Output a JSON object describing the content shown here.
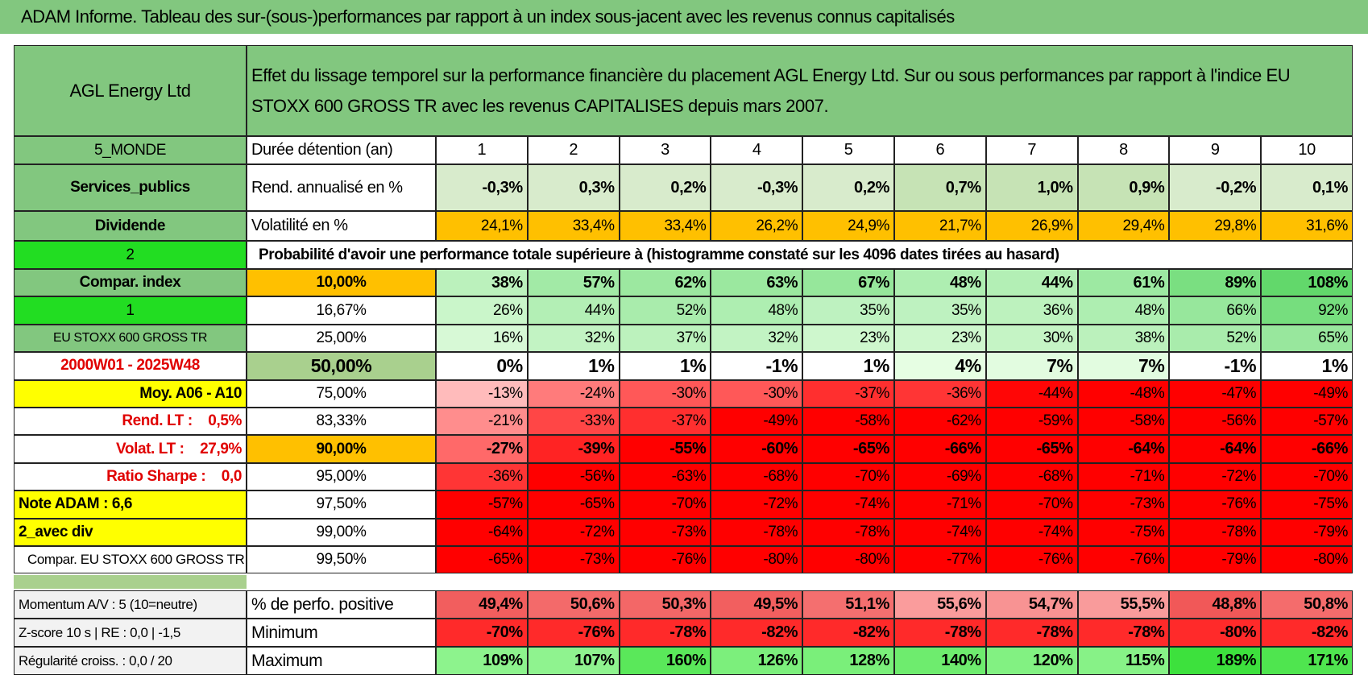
{
  "header": {
    "title": "ADAM Informe. Tableau des sur-(sous-)performances par rapport à un index sous-jacent avec les revenus connus capitalisés"
  },
  "table": {
    "corner": "AGL Energy Ltd",
    "description": "Effet du lissage temporel sur la performance financière du placement AGL Energy Ltd. Sur ou sous performances par rapport à l'indice EU STOXX 600 GROSS TR avec les revenus CAPITALISES depuis mars 2007.",
    "rows": [
      {
        "left": "5_MONDE",
        "label": "Durée détention (an)",
        "cells": [
          "1",
          "2",
          "3",
          "4",
          "5",
          "6",
          "7",
          "8",
          "9",
          "10"
        ]
      },
      {
        "left": "Services_publics",
        "label": "Rend. annualisé en %",
        "cells": [
          "-0,3%",
          "0,3%",
          "0,2%",
          "-0,3%",
          "0,2%",
          "0,7%",
          "1,0%",
          "0,9%",
          "-0,2%",
          "0,1%"
        ]
      },
      {
        "left": "Dividende",
        "label": "Volatilité en %",
        "cells": [
          "24,1%",
          "33,4%",
          "33,4%",
          "26,2%",
          "24,9%",
          "21,7%",
          "26,9%",
          "29,4%",
          "29,8%",
          "31,6%"
        ]
      },
      {
        "left": "2",
        "label": "Probabilité d'avoir une performance totale supérieure à (histogramme constaté sur les 4096 dates tirées au hasard)",
        "cells": []
      },
      {
        "left": "Compar. index",
        "label": "10,00%",
        "cells": [
          "38%",
          "57%",
          "62%",
          "63%",
          "67%",
          "48%",
          "44%",
          "61%",
          "89%",
          "108%"
        ]
      },
      {
        "left": "1",
        "label": "16,67%",
        "cells": [
          "26%",
          "44%",
          "52%",
          "48%",
          "35%",
          "35%",
          "36%",
          "48%",
          "66%",
          "92%"
        ]
      },
      {
        "left": "EU STOXX 600 GROSS TR",
        "label": "25,00%",
        "cells": [
          "16%",
          "32%",
          "37%",
          "32%",
          "23%",
          "23%",
          "30%",
          "38%",
          "52%",
          "65%"
        ]
      },
      {
        "left": "2000W01 - 2025W48",
        "label": "50,00%",
        "cells": [
          "0%",
          "1%",
          "1%",
          "-1%",
          "1%",
          "4%",
          "7%",
          "7%",
          "-1%",
          "1%"
        ]
      },
      {
        "left": "Moy. A06 - A10",
        "label": "75,00%",
        "cells": [
          "-13%",
          "-24%",
          "-30%",
          "-30%",
          "-37%",
          "-36%",
          "-44%",
          "-48%",
          "-47%",
          "-49%"
        ]
      },
      {
        "left": "Rend. LT :    0,5%",
        "label": "83,33%",
        "cells": [
          "-21%",
          "-33%",
          "-37%",
          "-49%",
          "-58%",
          "-62%",
          "-59%",
          "-58%",
          "-56%",
          "-57%"
        ]
      },
      {
        "left": "Volat. LT :    27,9%",
        "label": "90,00%",
        "cells": [
          "-27%",
          "-39%",
          "-55%",
          "-60%",
          "-65%",
          "-66%",
          "-65%",
          "-64%",
          "-64%",
          "-66%"
        ]
      },
      {
        "left": "Ratio Sharpe :    0,0",
        "label": "95,00%",
        "cells": [
          "-36%",
          "-56%",
          "-63%",
          "-68%",
          "-70%",
          "-69%",
          "-68%",
          "-71%",
          "-72%",
          "-70%"
        ]
      },
      {
        "left": "Note ADAM : 6,6",
        "label": "97,50%",
        "cells": [
          "-57%",
          "-65%",
          "-70%",
          "-72%",
          "-74%",
          "-71%",
          "-70%",
          "-73%",
          "-76%",
          "-75%"
        ]
      },
      {
        "left": "2_avec div",
        "label": "99,00%",
        "cells": [
          "-64%",
          "-72%",
          "-73%",
          "-78%",
          "-78%",
          "-74%",
          "-74%",
          "-75%",
          "-78%",
          "-79%"
        ]
      },
      {
        "left": "Compar. EU STOXX 600 GROSS TR",
        "label": "99,50%",
        "cells": [
          "-65%",
          "-73%",
          "-76%",
          "-80%",
          "-80%",
          "-77%",
          "-76%",
          "-76%",
          "-79%",
          "-80%"
        ]
      }
    ],
    "bottom_rows": [
      {
        "left": "Momentum A/V : 5 (10=neutre)",
        "label": "% de perfo. positive",
        "cells": [
          "49,4%",
          "50,6%",
          "50,3%",
          "49,5%",
          "51,1%",
          "55,6%",
          "54,7%",
          "55,5%",
          "48,8%",
          "50,8%"
        ]
      },
      {
        "left": "Z-score 10 s | RE : 0,0 | -1,5",
        "label": "Minimum",
        "cells": [
          "-70%",
          "-76%",
          "-78%",
          "-82%",
          "-82%",
          "-78%",
          "-78%",
          "-78%",
          "-80%",
          "-82%"
        ]
      },
      {
        "left": "Régularité croiss. : 0,0 / 20",
        "label": "Maximum",
        "cells": [
          "109%",
          "107%",
          "160%",
          "126%",
          "128%",
          "140%",
          "120%",
          "115%",
          "189%",
          "171%"
        ]
      }
    ]
  }
}
